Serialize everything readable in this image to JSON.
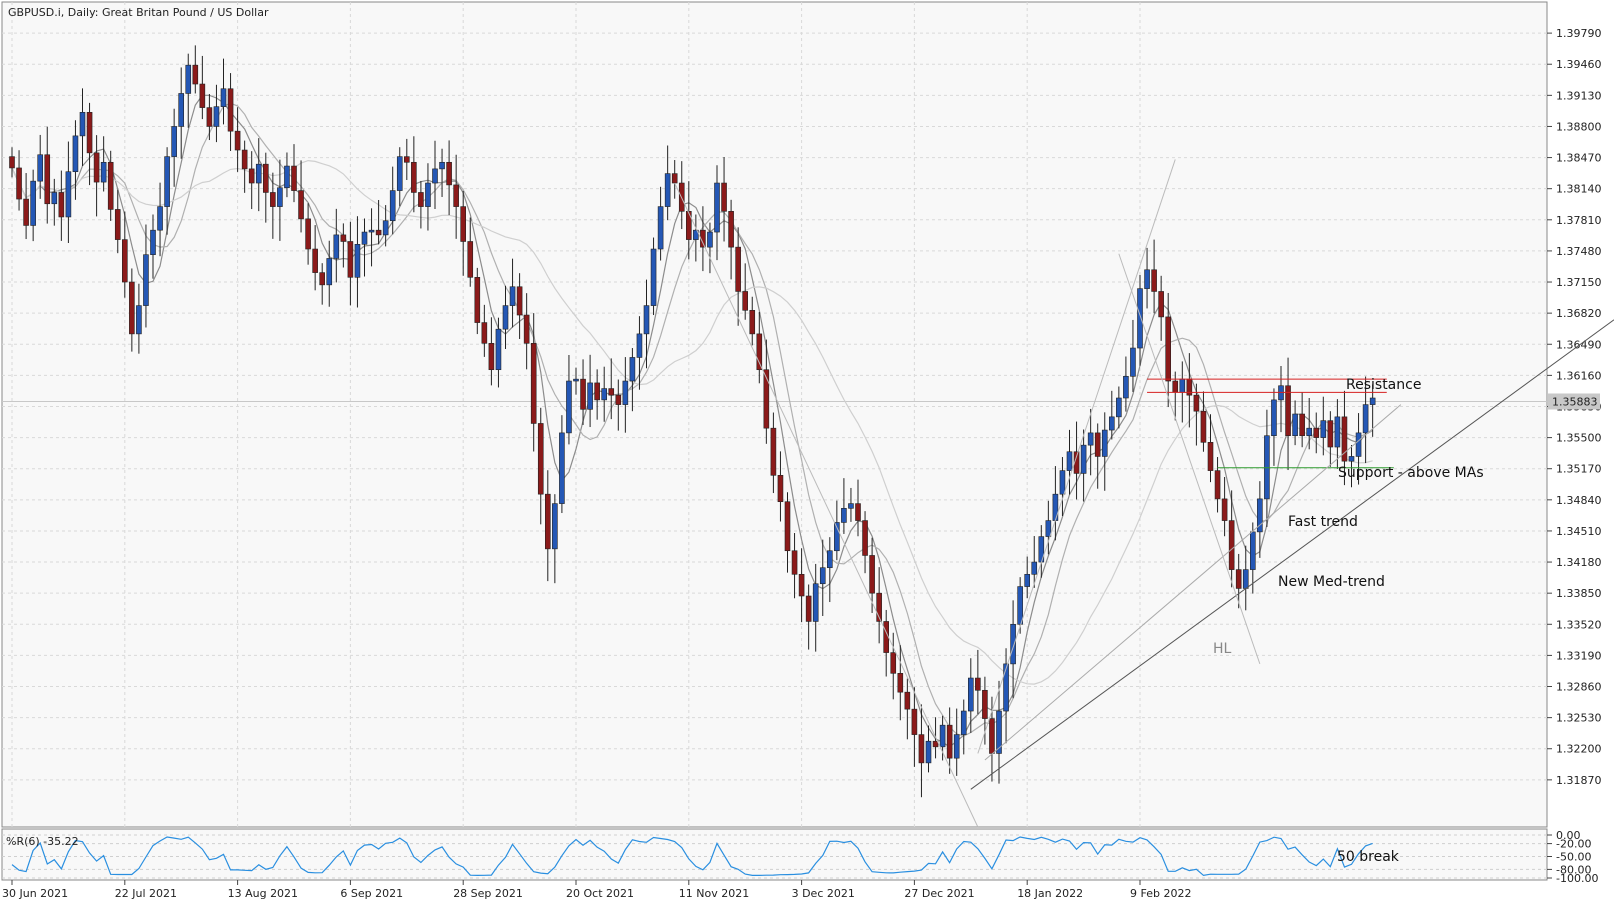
{
  "chart_data": {
    "type": "candlestick",
    "title": "GBPUSD.i, Daily:  Great Britan Pound / US Dollar",
    "symbol": "GBPUSD.i",
    "timeframe": "Daily",
    "price_axis": {
      "ylim": [
        1.3137,
        1.4012
      ],
      "ticks": [
        "1.39790",
        "1.39460",
        "1.39130",
        "1.38800",
        "1.38470",
        "1.38140",
        "1.37810",
        "1.37480",
        "1.37150",
        "1.36820",
        "1.36490",
        "1.36160",
        "1.35830",
        "1.35500",
        "1.35170",
        "1.34840",
        "1.34510",
        "1.34180",
        "1.33850",
        "1.33520",
        "1.33190",
        "1.32860",
        "1.32530",
        "1.32200",
        "1.31870"
      ],
      "current_price": "1.35883",
      "current_price_value": 1.35883
    },
    "date_labels": [
      "30 Jun 2021",
      "22 Jul 2021",
      "13 Aug 2021",
      "6 Sep 2021",
      "28 Sep 2021",
      "20 Oct 2021",
      "11 Nov 2021",
      "3 Dec 2021",
      "27 Dec 2021",
      "18 Jan 2022",
      "9 Feb 2022"
    ],
    "grid": true,
    "candle_colors": {
      "up": "#2457b5",
      "down": "#8b1a1a",
      "wick": "#222222"
    },
    "ma_colors": {
      "fast": "#8c8c8c",
      "medium": "#b0b0b0",
      "slow": "#cfcfcf"
    },
    "closes": [
      1.3836,
      1.3803,
      1.3775,
      1.3822,
      1.385,
      1.3798,
      1.381,
      1.3784,
      1.3832,
      1.387,
      1.3895,
      1.3852,
      1.3821,
      1.3842,
      1.3792,
      1.376,
      1.3715,
      1.366,
      1.369,
      1.3744,
      1.377,
      1.3795,
      1.3848,
      1.388,
      1.3915,
      1.3945,
      1.3925,
      1.39,
      1.388,
      1.3901,
      1.392,
      1.3875,
      1.3855,
      1.3835,
      1.382,
      1.384,
      1.381,
      1.3795,
      1.3815,
      1.3838,
      1.3812,
      1.3782,
      1.375,
      1.3725,
      1.3712,
      1.374,
      1.3765,
      1.3758,
      1.372,
      1.3755,
      1.3768,
      1.377,
      1.3765,
      1.378,
      1.3812,
      1.3848,
      1.3842,
      1.381,
      1.3795,
      1.382,
      1.3835,
      1.3842,
      1.3818,
      1.3795,
      1.3758,
      1.372,
      1.3672,
      1.365,
      1.3622,
      1.3665,
      1.369,
      1.371,
      1.368,
      1.365,
      1.3565,
      1.349,
      1.3432,
      1.348,
      1.3555,
      1.361,
      1.3612,
      1.358,
      1.3608,
      1.359,
      1.3602,
      1.3595,
      1.3585,
      1.361,
      1.3635,
      1.366,
      1.369,
      1.375,
      1.3795,
      1.383,
      1.382,
      1.379,
      1.376,
      1.377,
      1.3752,
      1.3768,
      1.382,
      1.379,
      1.3752,
      1.3705,
      1.3685,
      1.366,
      1.3622,
      1.356,
      1.351,
      1.3482,
      1.343,
      1.3405,
      1.3382,
      1.3355,
      1.3395,
      1.3412,
      1.343,
      1.346,
      1.3475,
      1.348,
      1.3462,
      1.3425,
      1.3385,
      1.3355,
      1.3322,
      1.33,
      1.328,
      1.3262,
      1.3235,
      1.3205,
      1.3228,
      1.3222,
      1.3245,
      1.321,
      1.3235,
      1.326,
      1.3295,
      1.3282,
      1.3252,
      1.3215,
      1.326,
      1.331,
      1.3352,
      1.3392,
      1.3405,
      1.3418,
      1.3445,
      1.3462,
      1.349,
      1.3515,
      1.3535,
      1.3512,
      1.3542,
      1.3555,
      1.353,
      1.3558,
      1.3572,
      1.3592,
      1.3615,
      1.3645,
      1.3708,
      1.3728,
      1.3705,
      1.3678,
      1.361,
      1.3598,
      1.3612,
      1.3595,
      1.3578,
      1.3545,
      1.3515,
      1.3485,
      1.3462,
      1.341,
      1.339,
      1.341,
      1.345,
      1.3485,
      1.3552,
      1.359,
      1.3605,
      1.3552,
      1.3575,
      1.3552,
      1.356,
      1.355,
      1.3568,
      1.354,
      1.3572,
      1.3525,
      1.353,
      1.3555,
      1.3585,
      1.3592
    ],
    "wr_indicator": {
      "label": "%R(6) -35.22",
      "ylim": [
        -100,
        0
      ],
      "levels": [
        "0.00",
        "-20.00",
        "-50.00",
        "-80.00",
        "-100.00"
      ],
      "line_color": "#2a8fe0"
    },
    "resistance_levels": [
      1.3612,
      1.3598
    ],
    "support_level": 1.3518
  },
  "annotations": {
    "resistance": "Resistance",
    "support": "Support - above MAs",
    "fast_trend": "Fast trend",
    "med_trend": "New Med-trend",
    "hl": "HL",
    "wr_break": "50 break"
  }
}
